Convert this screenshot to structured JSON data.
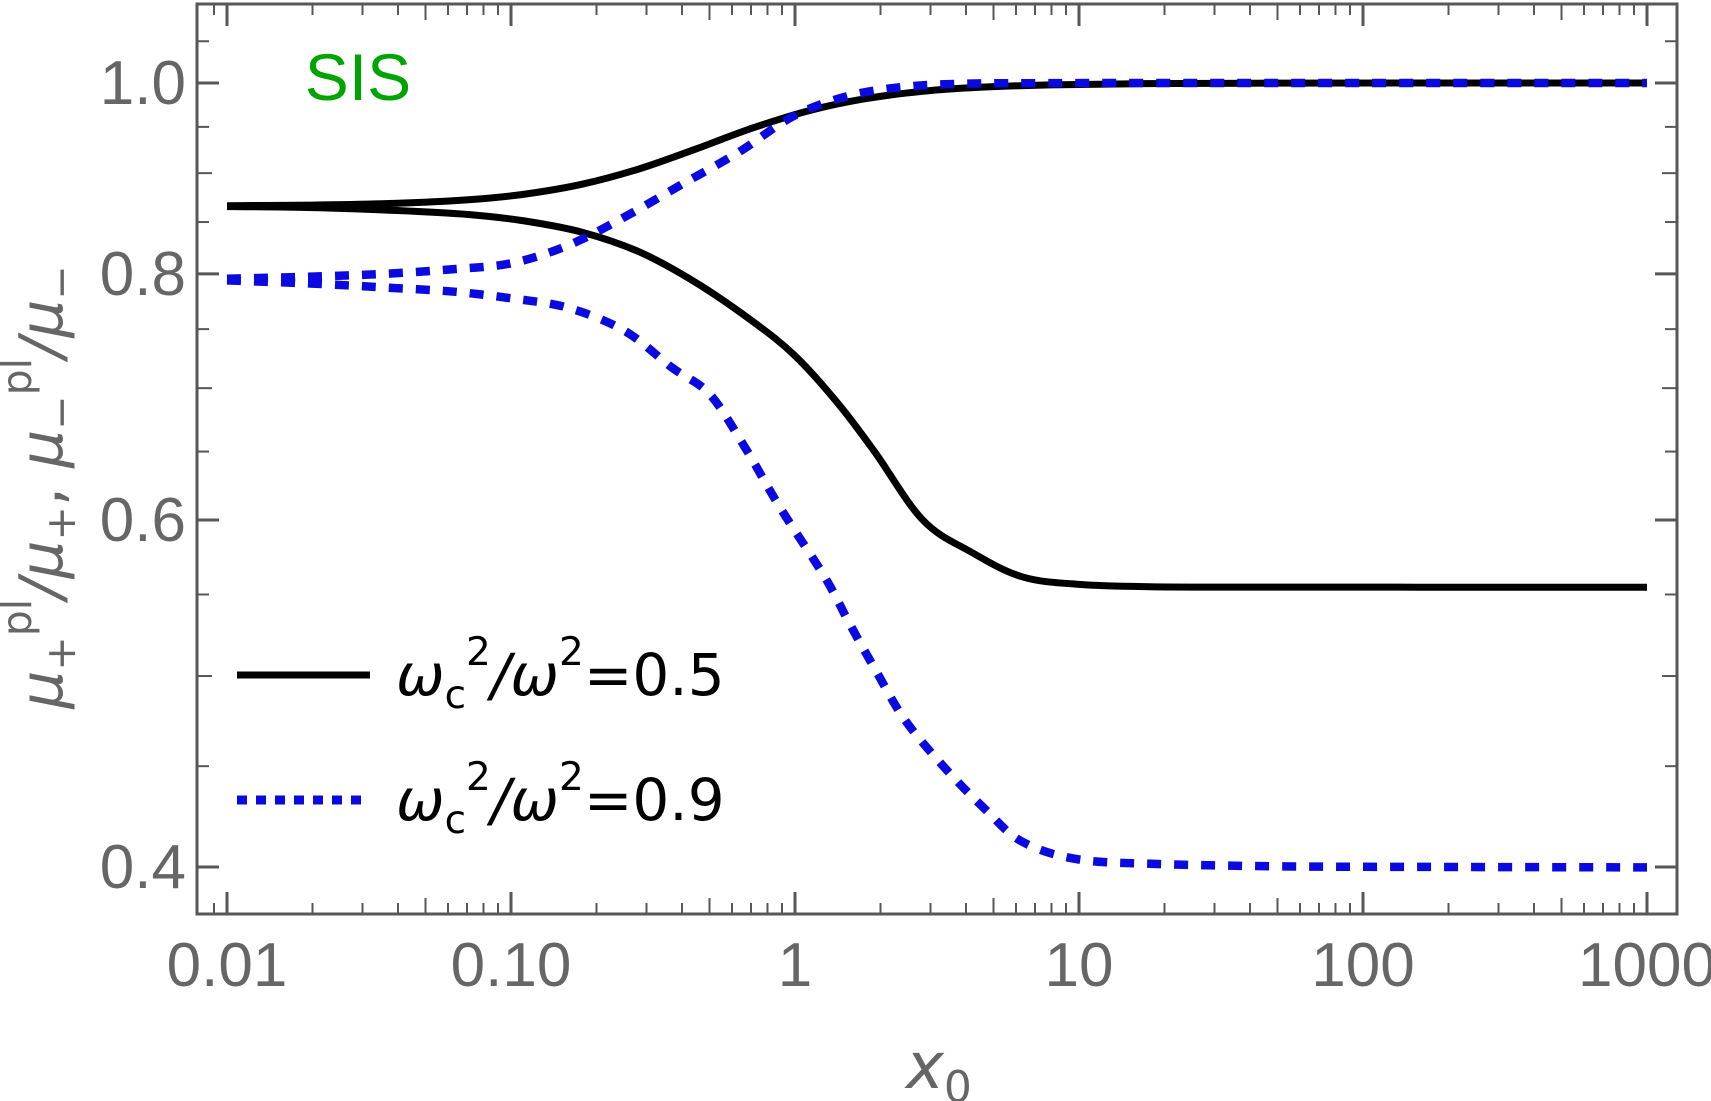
{
  "chart_data": {
    "type": "line",
    "description": "Log-log plot of plasma-to-vacuum magnification ratios for an SIS lens versus source position x0",
    "annotations": [
      {
        "text": "SIS",
        "color": "#00a400",
        "position": "top-left-inside-plot"
      }
    ],
    "xlabel_plain": "x0",
    "xlabel_parts": [
      {
        "t": "x",
        "it": 1
      },
      {
        "t": "0",
        "sub": 1
      }
    ],
    "ylabel_plain": "μ+ᵖˡ/μ+,  μ−ᵖˡ/μ−",
    "ylabel_parts": [
      {
        "t": "μ",
        "it": 1
      },
      {
        "t": "+",
        "sub": 1
      },
      {
        "t": "pl",
        "sup": 1
      },
      {
        "t": "/μ",
        "it": 1
      },
      {
        "t": "+",
        "sub": 1
      },
      {
        "t": ",  "
      },
      {
        "t": "μ",
        "it": 1
      },
      {
        "t": "−",
        "sub": 1
      },
      {
        "t": "pl",
        "sup": 1
      },
      {
        "t": "/μ",
        "it": 1
      },
      {
        "t": "−",
        "sub": 1
      }
    ],
    "x_axis": {
      "scale": "log",
      "range": [
        0.0078,
        1274
      ],
      "major_ticks": [
        0.01,
        0.1,
        1,
        10,
        100,
        1000
      ],
      "major_labels": [
        "0.01",
        "0.10",
        "1",
        "10",
        "100",
        "1000"
      ],
      "minor_mantissas": [
        2,
        3,
        4,
        5,
        6,
        7,
        8,
        9
      ]
    },
    "y_axis": {
      "scale": "log",
      "range": [
        0.378,
        1.096
      ],
      "major_ticks": [
        1.0,
        0.8,
        0.6,
        0.4
      ],
      "major_labels": [
        "1.0",
        "0.8",
        "0.6",
        "0.4"
      ],
      "minor_ticks": [
        1.05,
        0.95,
        0.9,
        0.85,
        0.75,
        0.7,
        0.65,
        0.55,
        0.5,
        0.45
      ]
    },
    "grid": false,
    "legend_position": "lower-left-inside-plot",
    "series": [
      {
        "id": "wc2-over-w2-0.5",
        "legend_plain": "ωc²/ω²=0.5",
        "legend_parts": [
          {
            "t": "ω",
            "it": 1
          },
          {
            "t": "c",
            "sub": 1
          },
          {
            "t": "2",
            "sup": 1
          },
          {
            "t": "/ω",
            "it": 1
          },
          {
            "t": "2",
            "sup": 1
          },
          {
            "t": "=0.5"
          }
        ],
        "style": "solid",
        "color": "#000000",
        "branches": {
          "plus": [
            [
              0.01,
              0.8664
            ],
            [
              0.02,
              0.867
            ],
            [
              0.0398,
              0.8688
            ],
            [
              0.0708,
              0.8724
            ],
            [
              0.112,
              0.8782
            ],
            [
              0.178,
              0.8884
            ],
            [
              0.282,
              0.9044
            ],
            [
              0.447,
              0.9257
            ],
            [
              0.708,
              0.9486
            ],
            [
              1.122,
              0.9682
            ],
            [
              1.778,
              0.9819
            ],
            [
              2.818,
              0.9903
            ],
            [
              4.467,
              0.995
            ],
            [
              7.943,
              0.9978
            ],
            [
              15.85,
              0.9992
            ],
            [
              39.81,
              0.9998
            ],
            [
              158.5,
              1.0
            ],
            [
              1000,
              1.0
            ]
          ],
          "minus": [
            [
              0.01,
              0.8655
            ],
            [
              0.02,
              0.8645
            ],
            [
              0.0398,
              0.8615
            ],
            [
              0.0708,
              0.8575
            ],
            [
              0.112,
              0.851
            ],
            [
              0.178,
              0.84
            ],
            [
              0.282,
              0.821
            ],
            [
              0.447,
              0.792
            ],
            [
              0.708,
              0.757
            ],
            [
              1.0,
              0.727
            ],
            [
              1.413,
              0.688
            ],
            [
              1.905,
              0.65
            ],
            [
              2.818,
              0.6
            ],
            [
              4.169,
              0.578
            ],
            [
              6.31,
              0.5615
            ],
            [
              10,
              0.5565
            ],
            [
              17.78,
              0.555
            ],
            [
              39.81,
              0.5548
            ],
            [
              158.5,
              0.5547
            ],
            [
              1000,
              0.5547
            ]
          ]
        }
      },
      {
        "id": "wc2-over-w2-0.9",
        "legend_plain": "ωc²/ω²=0.9",
        "legend_parts": [
          {
            "t": "ω",
            "it": 1
          },
          {
            "t": "c",
            "sub": 1
          },
          {
            "t": "2",
            "sup": 1
          },
          {
            "t": "/ω",
            "it": 1
          },
          {
            "t": "2",
            "sup": 1
          },
          {
            "t": "=0.9"
          }
        ],
        "style": "dotted",
        "color": "#0a0ae0",
        "branches": {
          "plus": [
            [
              0.01,
              0.7955
            ],
            [
              0.02,
              0.7975
            ],
            [
              0.0355,
              0.8
            ],
            [
              0.0631,
              0.8045
            ],
            [
              0.1,
              0.81
            ],
            [
              0.1585,
              0.827
            ],
            [
              0.2512,
              0.855
            ],
            [
              0.3981,
              0.888
            ],
            [
              0.631,
              0.922
            ],
            [
              1.0,
              0.963
            ],
            [
              1.585,
              0.986
            ],
            [
              2.512,
              0.996
            ],
            [
              3.981,
              0.9992
            ],
            [
              7.079,
              0.9998
            ],
            [
              15.85,
              1.0
            ],
            [
              100,
              1.0
            ],
            [
              1000,
              1.0
            ]
          ],
          "minus": [
            [
              0.01,
              0.794
            ],
            [
              0.02,
              0.791
            ],
            [
              0.0355,
              0.7875
            ],
            [
              0.0631,
              0.7835
            ],
            [
              0.1,
              0.7775
            ],
            [
              0.1585,
              0.769
            ],
            [
              0.2512,
              0.7485
            ],
            [
              0.369,
              0.717
            ],
            [
              0.501,
              0.695
            ],
            [
              0.667,
              0.653
            ],
            [
              0.891,
              0.608
            ],
            [
              1.276,
              0.561
            ],
            [
              1.563,
              0.531
            ],
            [
              1.914,
              0.504
            ],
            [
              2.438,
              0.475
            ],
            [
              3.373,
              0.449
            ],
            [
              4.667,
              0.428
            ],
            [
              6.31,
              0.412
            ],
            [
              10,
              0.4035
            ],
            [
              19.95,
              0.4013
            ],
            [
              50.12,
              0.4003
            ],
            [
              158.5,
              0.4
            ],
            [
              1000,
              0.3998
            ]
          ]
        }
      }
    ],
    "asymptotes": {
      "black_left": 0.866,
      "black_upper_right": 1.0,
      "black_lower_right": 0.555,
      "blue_left": 0.795,
      "blue_upper_right": 1.0,
      "blue_lower_right": 0.4
    },
    "colors": {
      "frame": "#575757",
      "labels": "#666666",
      "annotation_green": "#00a400",
      "series_black": "#000000",
      "series_blue": "#0a0ae0"
    }
  }
}
